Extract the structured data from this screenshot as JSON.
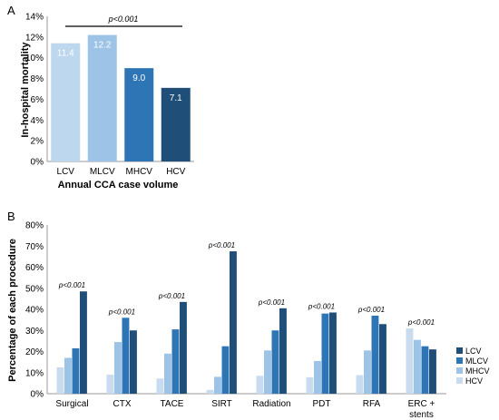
{
  "chart_data": [
    {
      "panel_label": "A",
      "type": "bar",
      "categories": [
        "LCV",
        "MLCV",
        "MHCV",
        "HCV"
      ],
      "values": [
        11.4,
        12.2,
        9.0,
        7.1
      ],
      "data_labels": [
        "11.4",
        "12.2",
        "9.0",
        "7.1"
      ],
      "colors": [
        "#bdd7ee",
        "#9dc3e6",
        "#2e75b6",
        "#1f4e79"
      ],
      "ylabel": "In-hospital mortality",
      "xlabel": "Annual CCA case volume",
      "ylim": [
        0,
        14
      ],
      "yticks": [
        "0%",
        "2%",
        "4%",
        "6%",
        "8%",
        "10%",
        "12%",
        "14%"
      ],
      "annotation": "p<0.001",
      "grid": false
    },
    {
      "panel_label": "B",
      "type": "bar",
      "categories": [
        "Surgical",
        "CTX",
        "TACE",
        "SIRT",
        "Radiation",
        "PDT",
        "RFA",
        "ERC + stents"
      ],
      "series": [
        {
          "name": "HCV",
          "color": "#c9dcef",
          "values": [
            12.5,
            9.0,
            7.2,
            1.8,
            8.5,
            7.8,
            8.8,
            31
          ]
        },
        {
          "name": "MHCV",
          "color": "#9dc3e6",
          "values": [
            17,
            24.5,
            19,
            8,
            20.5,
            15.5,
            20.5,
            25.5
          ]
        },
        {
          "name": "MLCV",
          "color": "#2e75b6",
          "values": [
            21.5,
            36,
            30.5,
            22.5,
            30,
            38,
            37,
            22.5
          ]
        },
        {
          "name": "LCV",
          "color": "#1f4e79",
          "values": [
            48.5,
            30,
            43.5,
            67.5,
            40.5,
            38.5,
            33,
            21
          ]
        }
      ],
      "legend_order": [
        "LCV",
        "MLCV",
        "MHCV",
        "HCV"
      ],
      "annotations": [
        "p<0.001",
        "p<0.001",
        "p<0.001",
        "p<0.001",
        "p<0.001",
        "p<0.001",
        "p<0.001",
        "p<0.001"
      ],
      "ylabel": "Percentage of each procedure",
      "ylim": [
        0,
        80
      ],
      "yticks": [
        "0%",
        "10%",
        "20%",
        "30%",
        "40%",
        "50%",
        "60%",
        "70%",
        "80%"
      ],
      "legend_position": "right",
      "grid": false
    }
  ]
}
